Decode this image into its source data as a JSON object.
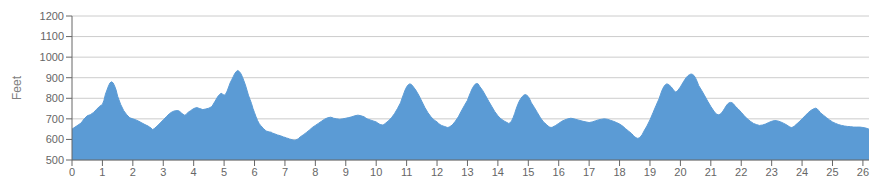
{
  "chart_data": {
    "type": "area",
    "ylabel": "Feet",
    "color": "#5b9bd5",
    "grid": "y",
    "xlim": [
      0,
      26.2
    ],
    "ylim": [
      500,
      1200
    ],
    "xticks": [
      0,
      1,
      2,
      3,
      4,
      5,
      6,
      7,
      8,
      9,
      10,
      11,
      12,
      13,
      14,
      15,
      16,
      17,
      18,
      19,
      20,
      21,
      22,
      23,
      24,
      25,
      26
    ],
    "yticks": [
      500,
      600,
      700,
      800,
      900,
      1000,
      1100,
      1200
    ],
    "x": [
      0.0,
      0.05,
      0.1,
      0.15,
      0.2,
      0.3,
      0.4,
      0.5,
      0.6,
      0.7,
      0.8,
      0.9,
      1.0,
      1.05,
      1.1,
      1.15,
      1.2,
      1.25,
      1.3,
      1.35,
      1.4,
      1.45,
      1.5,
      1.6,
      1.7,
      1.8,
      1.9,
      2.0,
      2.1,
      2.2,
      2.3,
      2.4,
      2.5,
      2.55,
      2.6,
      2.65,
      2.7,
      2.8,
      2.9,
      3.0,
      3.1,
      3.2,
      3.3,
      3.4,
      3.5,
      3.55,
      3.6,
      3.65,
      3.7,
      3.75,
      3.8,
      3.9,
      4.0,
      4.1,
      4.2,
      4.3,
      4.4,
      4.5,
      4.6,
      4.7,
      4.8,
      4.9,
      5.0,
      5.05,
      5.1,
      5.15,
      5.2,
      5.25,
      5.3,
      5.35,
      5.4,
      5.45,
      5.5,
      5.55,
      5.6,
      5.65,
      5.7,
      5.75,
      5.8,
      5.85,
      5.9,
      5.95,
      6.0,
      6.05,
      6.1,
      6.15,
      6.2,
      6.25,
      6.3,
      6.35,
      6.4,
      6.45,
      6.5,
      6.55,
      6.6,
      6.65,
      6.7,
      6.75,
      6.8,
      6.85,
      6.9,
      6.95,
      7.0,
      7.05,
      7.1,
      7.15,
      7.2,
      7.25,
      7.3,
      7.35,
      7.4,
      7.45,
      7.5,
      7.6,
      7.7,
      7.8,
      7.9,
      8.0,
      8.1,
      8.2,
      8.3,
      8.4,
      8.5,
      8.55,
      8.6,
      8.7,
      8.8,
      8.9,
      9.0,
      9.1,
      9.2,
      9.3,
      9.4,
      9.5,
      9.6,
      9.65,
      9.7,
      9.8,
      9.9,
      10.0,
      10.05,
      10.1,
      10.15,
      10.2,
      10.25,
      10.3,
      10.4,
      10.5,
      10.6,
      10.7,
      10.8,
      10.85,
      10.9,
      10.95,
      11.0,
      11.05,
      11.1,
      11.15,
      11.2,
      11.3,
      11.4,
      11.5,
      11.6,
      11.7,
      11.8,
      11.9,
      12.0,
      12.05,
      12.1,
      12.15,
      12.2,
      12.25,
      12.3,
      12.35,
      12.4,
      12.5,
      12.6,
      12.7,
      12.8,
      12.9,
      13.0,
      13.05,
      13.1,
      13.15,
      13.2,
      13.25,
      13.3,
      13.35,
      13.4,
      13.5,
      13.6,
      13.7,
      13.8,
      13.9,
      14.0,
      14.1,
      14.2,
      14.3,
      14.35,
      14.4,
      14.45,
      14.5,
      14.55,
      14.6,
      14.65,
      14.7,
      14.75,
      14.8,
      14.85,
      14.9,
      14.95,
      15.0,
      15.05,
      15.1,
      15.2,
      15.3,
      15.4,
      15.5,
      15.6,
      15.65,
      15.7,
      15.75,
      15.8,
      15.9,
      16.0,
      16.1,
      16.2,
      16.3,
      16.4,
      16.5,
      16.6,
      16.7,
      16.8,
      16.9,
      17.0,
      17.1,
      17.2,
      17.3,
      17.4,
      17.5,
      17.6,
      17.7,
      17.8,
      17.9,
      18.0,
      18.1,
      18.2,
      18.3,
      18.4,
      18.45,
      18.5,
      18.55,
      18.6,
      18.65,
      18.7,
      18.75,
      18.8,
      18.9,
      19.0,
      19.1,
      19.2,
      19.3,
      19.35,
      19.4,
      19.45,
      19.5,
      19.55,
      19.6,
      19.65,
      19.7,
      19.75,
      19.8,
      19.85,
      19.9,
      19.95,
      20.0,
      20.05,
      20.1,
      20.15,
      20.2,
      20.25,
      20.3,
      20.35,
      20.4,
      20.45,
      20.5,
      20.55,
      20.6,
      20.7,
      20.8,
      20.9,
      21.0,
      21.1,
      21.15,
      21.2,
      21.25,
      21.3,
      21.35,
      21.4,
      21.45,
      21.5,
      21.55,
      21.6,
      21.65,
      21.7,
      21.75,
      21.8,
      21.9,
      22.0,
      22.1,
      22.2,
      22.3,
      22.4,
      22.5,
      22.6,
      22.7,
      22.8,
      22.9,
      23.0,
      23.1,
      23.2,
      23.3,
      23.4,
      23.5,
      23.55,
      23.6,
      23.65,
      23.7,
      23.75,
      23.8,
      23.9,
      24.0,
      24.1,
      24.2,
      24.3,
      24.4,
      24.45,
      24.5,
      24.55,
      24.6,
      24.7,
      24.8,
      24.9,
      25.0,
      25.1,
      25.2,
      25.3,
      25.4,
      25.5,
      25.6,
      25.7,
      25.8,
      25.9,
      26.0,
      26.1,
      26.2
    ],
    "values": [
      650,
      655,
      660,
      665,
      670,
      680,
      700,
      715,
      720,
      730,
      745,
      760,
      770,
      790,
      820,
      840,
      860,
      875,
      880,
      875,
      860,
      840,
      810,
      770,
      740,
      720,
      705,
      700,
      695,
      688,
      680,
      672,
      665,
      660,
      655,
      648,
      652,
      665,
      680,
      695,
      710,
      725,
      735,
      740,
      740,
      735,
      728,
      722,
      718,
      720,
      730,
      740,
      750,
      755,
      750,
      745,
      748,
      752,
      760,
      785,
      810,
      825,
      815,
      820,
      835,
      855,
      875,
      890,
      905,
      920,
      930,
      935,
      930,
      920,
      905,
      885,
      865,
      840,
      815,
      795,
      775,
      750,
      730,
      710,
      692,
      678,
      668,
      660,
      652,
      645,
      640,
      638,
      636,
      635,
      630,
      628,
      625,
      622,
      620,
      618,
      615,
      612,
      610,
      607,
      605,
      602,
      600,
      598,
      596,
      597,
      600,
      605,
      612,
      622,
      633,
      645,
      658,
      668,
      678,
      688,
      698,
      705,
      708,
      706,
      703,
      700,
      698,
      700,
      703,
      706,
      710,
      715,
      718,
      715,
      710,
      705,
      700,
      695,
      690,
      685,
      680,
      675,
      672,
      670,
      672,
      678,
      690,
      705,
      725,
      750,
      778,
      800,
      820,
      840,
      855,
      865,
      870,
      868,
      860,
      840,
      815,
      785,
      755,
      730,
      710,
      695,
      685,
      678,
      672,
      668,
      665,
      663,
      660,
      658,
      660,
      670,
      688,
      710,
      738,
      765,
      790,
      810,
      828,
      845,
      858,
      868,
      872,
      870,
      858,
      838,
      812,
      785,
      760,
      735,
      715,
      700,
      690,
      682,
      678,
      680,
      690,
      705,
      725,
      748,
      768,
      785,
      798,
      808,
      815,
      818,
      815,
      808,
      795,
      778,
      755,
      730,
      705,
      685,
      672,
      665,
      660,
      658,
      660,
      668,
      678,
      688,
      695,
      700,
      703,
      700,
      696,
      692,
      688,
      685,
      682,
      685,
      690,
      695,
      698,
      700,
      698,
      693,
      688,
      682,
      675,
      665,
      652,
      640,
      628,
      620,
      612,
      608,
      605,
      608,
      615,
      625,
      640,
      665,
      695,
      730,
      765,
      798,
      820,
      840,
      855,
      865,
      870,
      868,
      862,
      855,
      845,
      835,
      830,
      835,
      845,
      855,
      868,
      880,
      892,
      902,
      910,
      915,
      918,
      916,
      910,
      898,
      882,
      862,
      838,
      812,
      785,
      760,
      738,
      728,
      722,
      720,
      722,
      728,
      738,
      750,
      762,
      772,
      778,
      780,
      778,
      772,
      762,
      748,
      732,
      715,
      700,
      688,
      678,
      672,
      668,
      670,
      675,
      682,
      688,
      692,
      690,
      685,
      678,
      670,
      665,
      660,
      658,
      660,
      665,
      672,
      685,
      700,
      715,
      730,
      742,
      750,
      752,
      748,
      740,
      730,
      718,
      706,
      695,
      685,
      678,
      672,
      668,
      665,
      663,
      662,
      660,
      660,
      660,
      658,
      655,
      650
    ]
  }
}
